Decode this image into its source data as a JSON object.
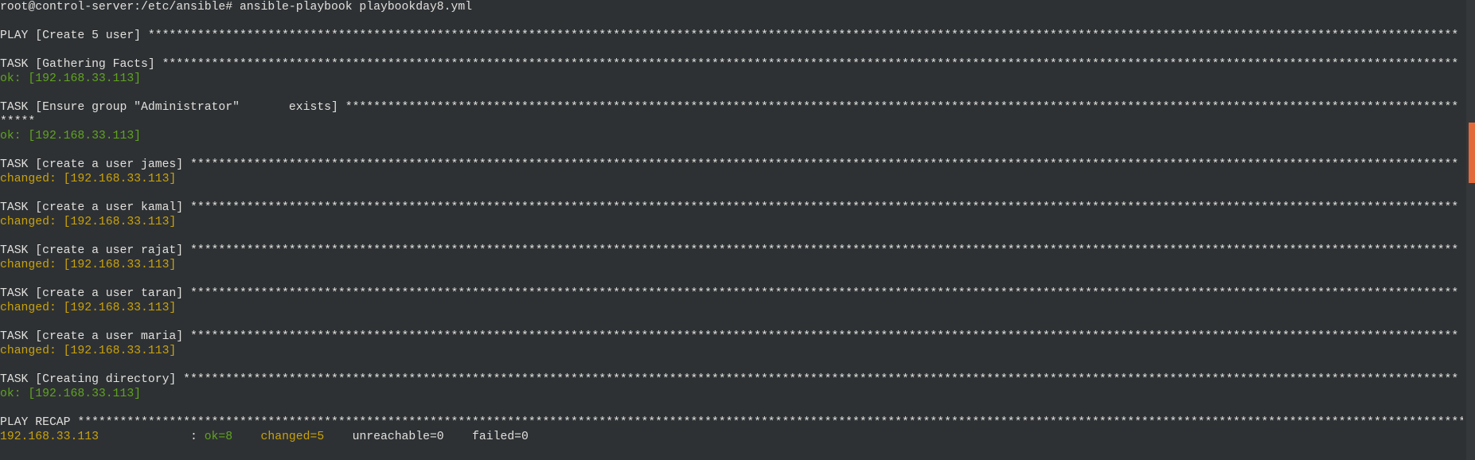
{
  "prompt": "root@control-server:/etc/ansible# ansible-playbook playbookday8.yml",
  "blocks": [
    {
      "lines": [
        [
          {
            "text": "PLAY [Create 5 user] ******************************************************************************************************************************************************************************************",
            "style": "plain"
          }
        ]
      ]
    },
    {
      "lines": [
        [
          {
            "text": "TASK [Gathering Facts] ****************************************************************************************************************************************************************************************",
            "style": "plain"
          }
        ],
        [
          {
            "text": "ok: [192.168.33.113]",
            "style": "ok"
          }
        ]
      ]
    },
    {
      "lines": [
        [
          {
            "text": "TASK [Ensure group \"Administrator\"       exists] **************************************************************************************************************************************************************",
            "style": "plain"
          }
        ],
        [
          {
            "text": "*****",
            "style": "plain"
          }
        ],
        [
          {
            "text": "ok: [192.168.33.113]",
            "style": "ok"
          }
        ]
      ]
    },
    {
      "lines": [
        [
          {
            "text": "TASK [create a user james] ************************************************************************************************************************************************************************************",
            "style": "plain"
          }
        ],
        [
          {
            "text": "changed: [192.168.33.113]",
            "style": "changed"
          }
        ]
      ]
    },
    {
      "lines": [
        [
          {
            "text": "TASK [create a user kamal] ************************************************************************************************************************************************************************************",
            "style": "plain"
          }
        ],
        [
          {
            "text": "changed: [192.168.33.113]",
            "style": "changed"
          }
        ]
      ]
    },
    {
      "lines": [
        [
          {
            "text": "TASK [create a user rajat] ************************************************************************************************************************************************************************************",
            "style": "plain"
          }
        ],
        [
          {
            "text": "changed: [192.168.33.113]",
            "style": "changed"
          }
        ]
      ]
    },
    {
      "lines": [
        [
          {
            "text": "TASK [create a user taran] ************************************************************************************************************************************************************************************",
            "style": "plain"
          }
        ],
        [
          {
            "text": "changed: [192.168.33.113]",
            "style": "changed"
          }
        ]
      ]
    },
    {
      "lines": [
        [
          {
            "text": "TASK [create a user maria] ************************************************************************************************************************************************************************************",
            "style": "plain"
          }
        ],
        [
          {
            "text": "changed: [192.168.33.113]",
            "style": "changed"
          }
        ]
      ]
    },
    {
      "lines": [
        [
          {
            "text": "TASK [Creating directory] *************************************************************************************************************************************************************************************",
            "style": "plain"
          }
        ],
        [
          {
            "text": "ok: [192.168.33.113]",
            "style": "ok"
          }
        ]
      ]
    },
    {
      "lines": [
        [
          {
            "text": "PLAY RECAP **********************************************************************************************************************************************************************************************************",
            "style": "plain"
          }
        ],
        [
          {
            "text": "192.168.33.113",
            "style": "changed"
          },
          {
            "text": "             : ",
            "style": "plain"
          },
          {
            "text": "ok=8",
            "style": "ok"
          },
          {
            "text": "    ",
            "style": "plain"
          },
          {
            "text": "changed=5",
            "style": "changed"
          },
          {
            "text": "    unreachable=0    failed=0",
            "style": "plain"
          }
        ]
      ]
    }
  ]
}
